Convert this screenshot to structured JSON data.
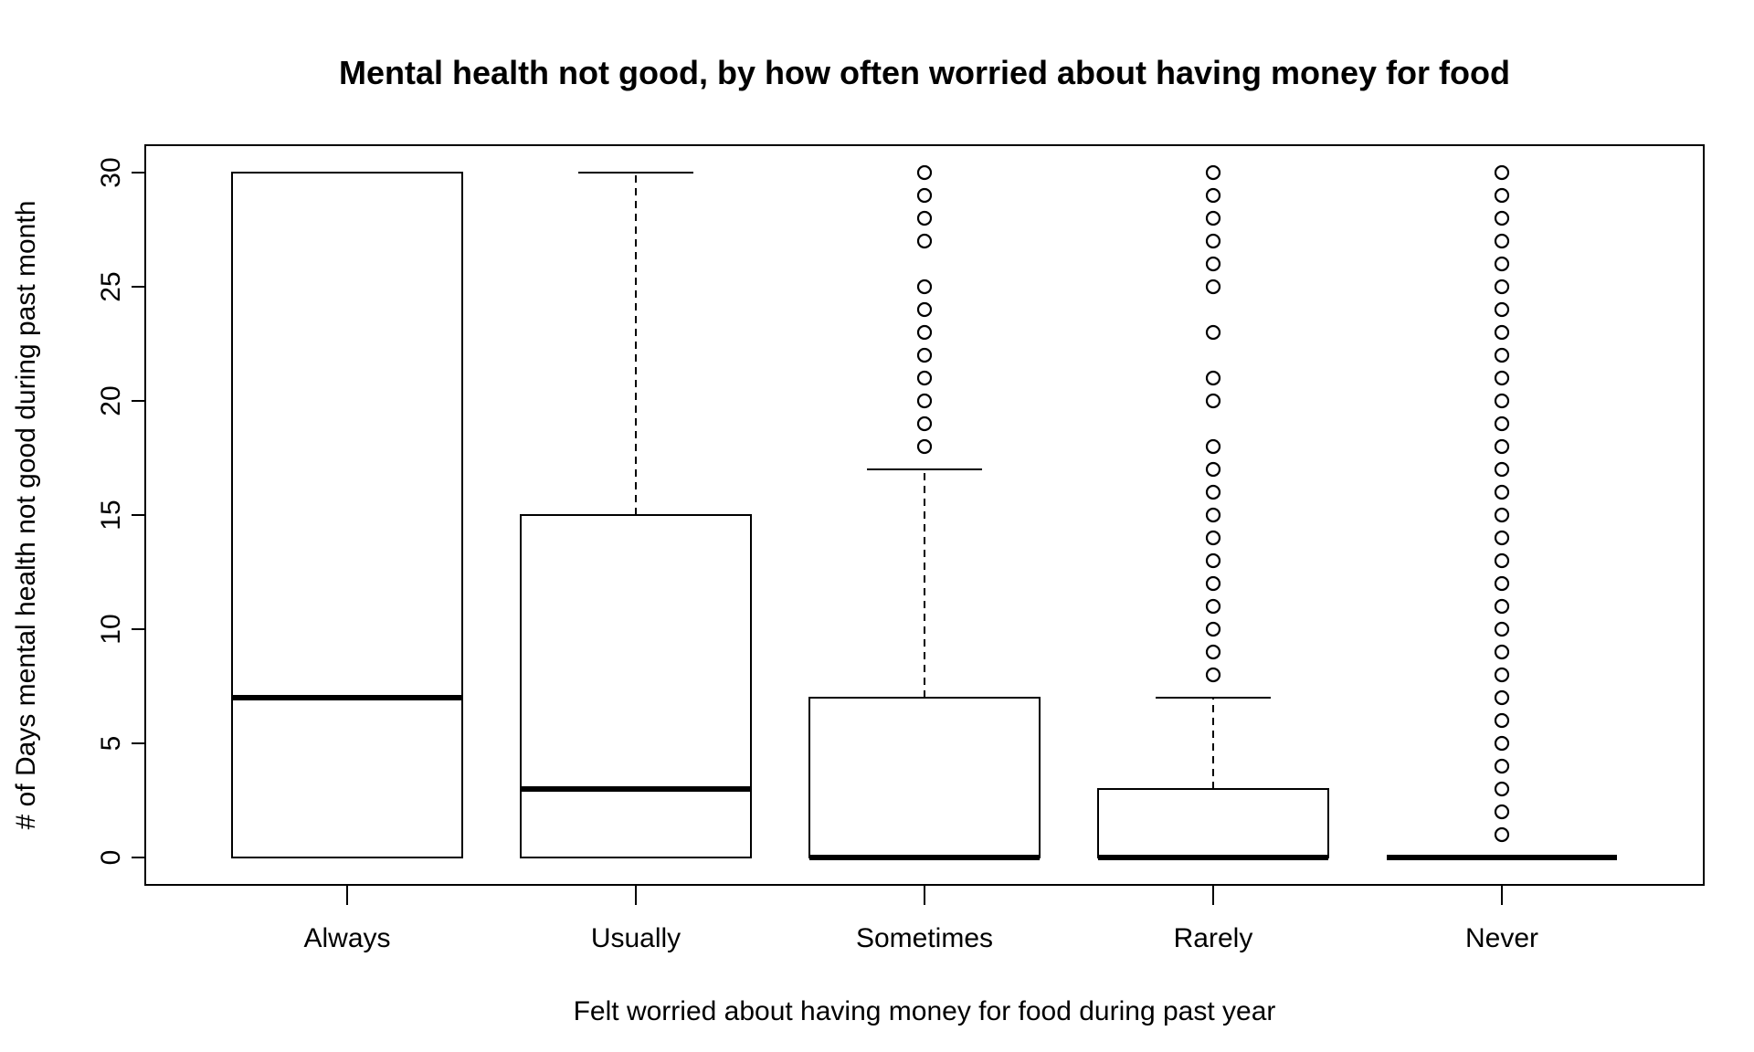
{
  "chart_data": {
    "type": "boxplot",
    "title": "Mental health not good, by how often worried about having money for food",
    "xlabel": "Felt worried about having money for food during past year",
    "ylabel": "# of Days mental health not good during past month",
    "ylim": [
      0,
      30
    ],
    "yticks": [
      "0",
      "5",
      "10",
      "15",
      "20",
      "25",
      "30"
    ],
    "categories": [
      "Always",
      "Usually",
      "Sometimes",
      "Rarely",
      "Never"
    ],
    "boxes": [
      {
        "category": "Always",
        "min": 0,
        "q1": 0,
        "median": 7,
        "q3": 30,
        "max": 30,
        "outliers": []
      },
      {
        "category": "Usually",
        "min": 0,
        "q1": 0,
        "median": 3,
        "q3": 15,
        "max": 30,
        "outliers": []
      },
      {
        "category": "Sometimes",
        "min": 0,
        "q1": 0,
        "median": 0,
        "q3": 7,
        "max": 17,
        "outliers": [
          18,
          19,
          20,
          21,
          22,
          23,
          24,
          25,
          27,
          28,
          29,
          30
        ]
      },
      {
        "category": "Rarely",
        "min": 0,
        "q1": 0,
        "median": 0,
        "q3": 3,
        "max": 7,
        "outliers": [
          8,
          9,
          10,
          11,
          12,
          13,
          14,
          15,
          16,
          17,
          18,
          20,
          21,
          23,
          25,
          26,
          27,
          28,
          29,
          30
        ]
      },
      {
        "category": "Never",
        "min": 0,
        "q1": 0,
        "median": 0,
        "q3": 0,
        "max": 0,
        "outliers": [
          1,
          2,
          3,
          4,
          5,
          6,
          7,
          8,
          9,
          10,
          11,
          12,
          13,
          14,
          15,
          16,
          17,
          18,
          19,
          20,
          21,
          22,
          23,
          24,
          25,
          26,
          27,
          28,
          29,
          30
        ]
      }
    ],
    "grid": false,
    "legend": "none"
  }
}
